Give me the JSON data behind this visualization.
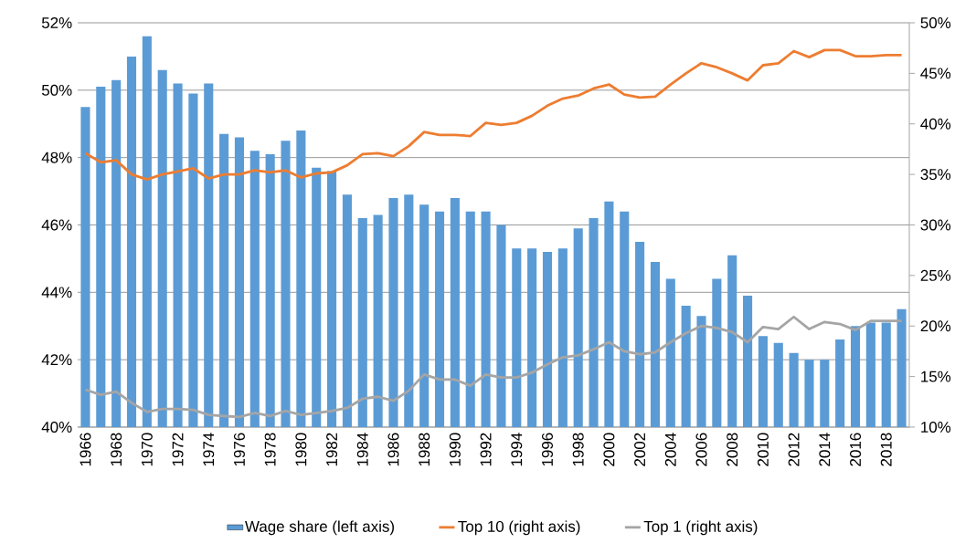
{
  "chart_data": {
    "type": "bar",
    "categories": [
      "1966",
      null,
      "1968",
      null,
      "1970",
      null,
      "1972",
      null,
      "1974",
      null,
      "1976",
      null,
      "1978",
      null,
      "1980",
      null,
      "1982",
      null,
      "1984",
      null,
      "1986",
      null,
      "1988",
      null,
      "1990",
      null,
      "1992",
      null,
      "1994",
      null,
      "1996",
      null,
      "1998",
      null,
      "2000",
      null,
      "2002",
      null,
      "2004",
      null,
      "2006",
      null,
      "2008",
      null,
      "2010",
      null,
      "2012",
      null,
      "2014",
      null,
      "2016",
      null,
      "2018",
      null
    ],
    "series": [
      {
        "name": "Wage share (left axis)",
        "color": "#5b9bd5",
        "values": [
          49.5,
          50.1,
          50.3,
          51.0,
          51.6,
          50.6,
          50.2,
          49.9,
          50.2,
          48.7,
          48.6,
          48.2,
          48.1,
          48.5,
          48.8,
          47.7,
          47.6,
          46.9,
          46.2,
          46.3,
          46.8,
          46.9,
          46.6,
          46.4,
          46.8,
          46.4,
          46.4,
          46.0,
          45.3,
          45.3,
          45.2,
          45.3,
          45.9,
          46.2,
          46.7,
          46.4,
          45.5,
          44.9,
          44.4,
          43.6,
          43.3,
          44.4,
          45.1,
          43.9,
          42.7,
          42.5,
          42.2,
          42.0,
          42.0,
          42.6,
          43.0,
          43.1,
          43.1,
          43.5
        ]
      },
      {
        "name": "Top 10 (right axis)",
        "type": "line",
        "axis": "y2",
        "color": "#ed7d31",
        "values": [
          37.1,
          36.2,
          36.4,
          35.0,
          34.5,
          35.0,
          35.3,
          35.6,
          34.6,
          35.0,
          35.0,
          35.4,
          35.2,
          35.4,
          34.7,
          35.1,
          35.2,
          35.9,
          37.0,
          37.1,
          36.8,
          37.8,
          39.2,
          38.9,
          38.9,
          38.8,
          40.1,
          39.9,
          40.1,
          40.8,
          41.8,
          42.5,
          42.8,
          43.5,
          43.9,
          42.9,
          42.6,
          42.7,
          43.9,
          45.0,
          46.0,
          45.6,
          45.0,
          44.3,
          45.8,
          46.0,
          47.2,
          46.6,
          47.3,
          47.3,
          46.7,
          46.7,
          46.8,
          46.8
        ]
      },
      {
        "name": "Top 1 (right axis)",
        "type": "line",
        "axis": "y2",
        "color": "#a5a5a5",
        "values": [
          13.7,
          13.2,
          13.5,
          12.4,
          11.5,
          11.8,
          11.8,
          11.7,
          11.2,
          11.1,
          11.0,
          11.4,
          11.1,
          11.6,
          11.2,
          11.4,
          11.6,
          11.9,
          12.8,
          13.0,
          12.6,
          13.6,
          15.2,
          14.7,
          14.7,
          14.1,
          15.2,
          14.9,
          14.9,
          15.4,
          16.2,
          16.9,
          17.1,
          17.7,
          18.4,
          17.5,
          17.2,
          17.4,
          18.4,
          19.3,
          20.0,
          19.8,
          19.4,
          18.4,
          19.9,
          19.7,
          20.9,
          19.7,
          20.4,
          20.2,
          19.6,
          20.5,
          20.5,
          20.5
        ]
      }
    ],
    "ylim": [
      40,
      52
    ],
    "yticks": [
      {
        "value": 40,
        "label": "40%"
      },
      {
        "value": 42,
        "label": "42%"
      },
      {
        "value": 44,
        "label": "44%"
      },
      {
        "value": 46,
        "label": "46%"
      },
      {
        "value": 48,
        "label": "48%"
      },
      {
        "value": 50,
        "label": "50%"
      },
      {
        "value": 52,
        "label": "52%"
      }
    ],
    "y2lim": [
      10,
      50
    ],
    "y2ticks": [
      {
        "value": 10,
        "label": "10%"
      },
      {
        "value": 15,
        "label": "15%"
      },
      {
        "value": 20,
        "label": "20%"
      },
      {
        "value": 25,
        "label": "25%"
      },
      {
        "value": 30,
        "label": "30%"
      },
      {
        "value": 35,
        "label": "35%"
      },
      {
        "value": 40,
        "label": "40%"
      },
      {
        "value": 45,
        "label": "45%"
      },
      {
        "value": 50,
        "label": "50%"
      }
    ],
    "grid": "y",
    "legend": "bottom"
  }
}
